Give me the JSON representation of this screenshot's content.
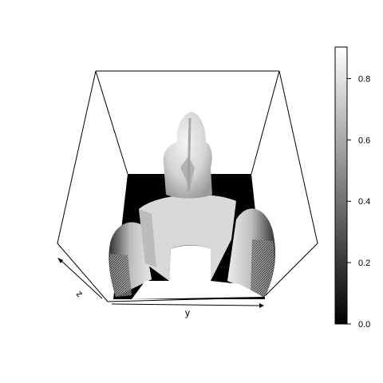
{
  "chart_data": {
    "type": "heatmap",
    "title": "",
    "render": "3D perspective surface (persp-style), grayscale shading",
    "axis_labels": {
      "x": "y",
      "z": "z"
    },
    "colorbar": {
      "range": [
        0.0,
        0.9
      ],
      "ticks": [
        0.0,
        0.2,
        0.4,
        0.6,
        0.8
      ],
      "tick_labels": [
        "0.0",
        "0.2",
        "0.4",
        "0.6",
        "0.8"
      ],
      "palette": [
        "#000000",
        "#ffffff"
      ]
    },
    "grid": false,
    "legend_position": "right"
  }
}
